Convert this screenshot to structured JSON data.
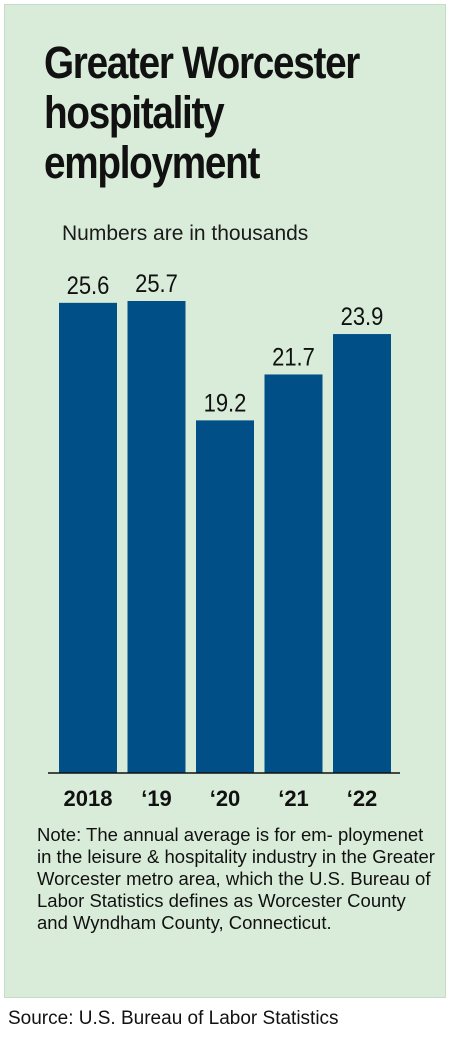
{
  "header": {
    "title_line1": "Greater Worcester",
    "title_line2": "hospitality",
    "title_line3": "employment",
    "subtitle": "Numbers are in thousands"
  },
  "chart_data": {
    "type": "bar",
    "categories": [
      "2018",
      "‘19",
      "‘20",
      "‘21",
      "‘22"
    ],
    "values": [
      25.6,
      25.7,
      19.2,
      21.7,
      23.9
    ],
    "data_labels": [
      "25.6",
      "25.7",
      "19.2",
      "21.7",
      "23.9"
    ],
    "title": "Greater Worcester hospitality employment",
    "subtitle": "Numbers are in thousands",
    "xlabel": "",
    "ylabel": "",
    "ylim": [
      0,
      25.7
    ],
    "grid": false,
    "bar_color": "#004f87",
    "background_color": "#d9ecd9"
  },
  "note": "Note: The annual average is for em- ploymenet in the leisure & hospitality industry in the Greater Worcester metro area, which the U.S. Bureau of Labor Statistics defines as Worcester County and Wyndham County, Connecticut.",
  "source": "Source: U.S. Bureau of Labor Statistics"
}
